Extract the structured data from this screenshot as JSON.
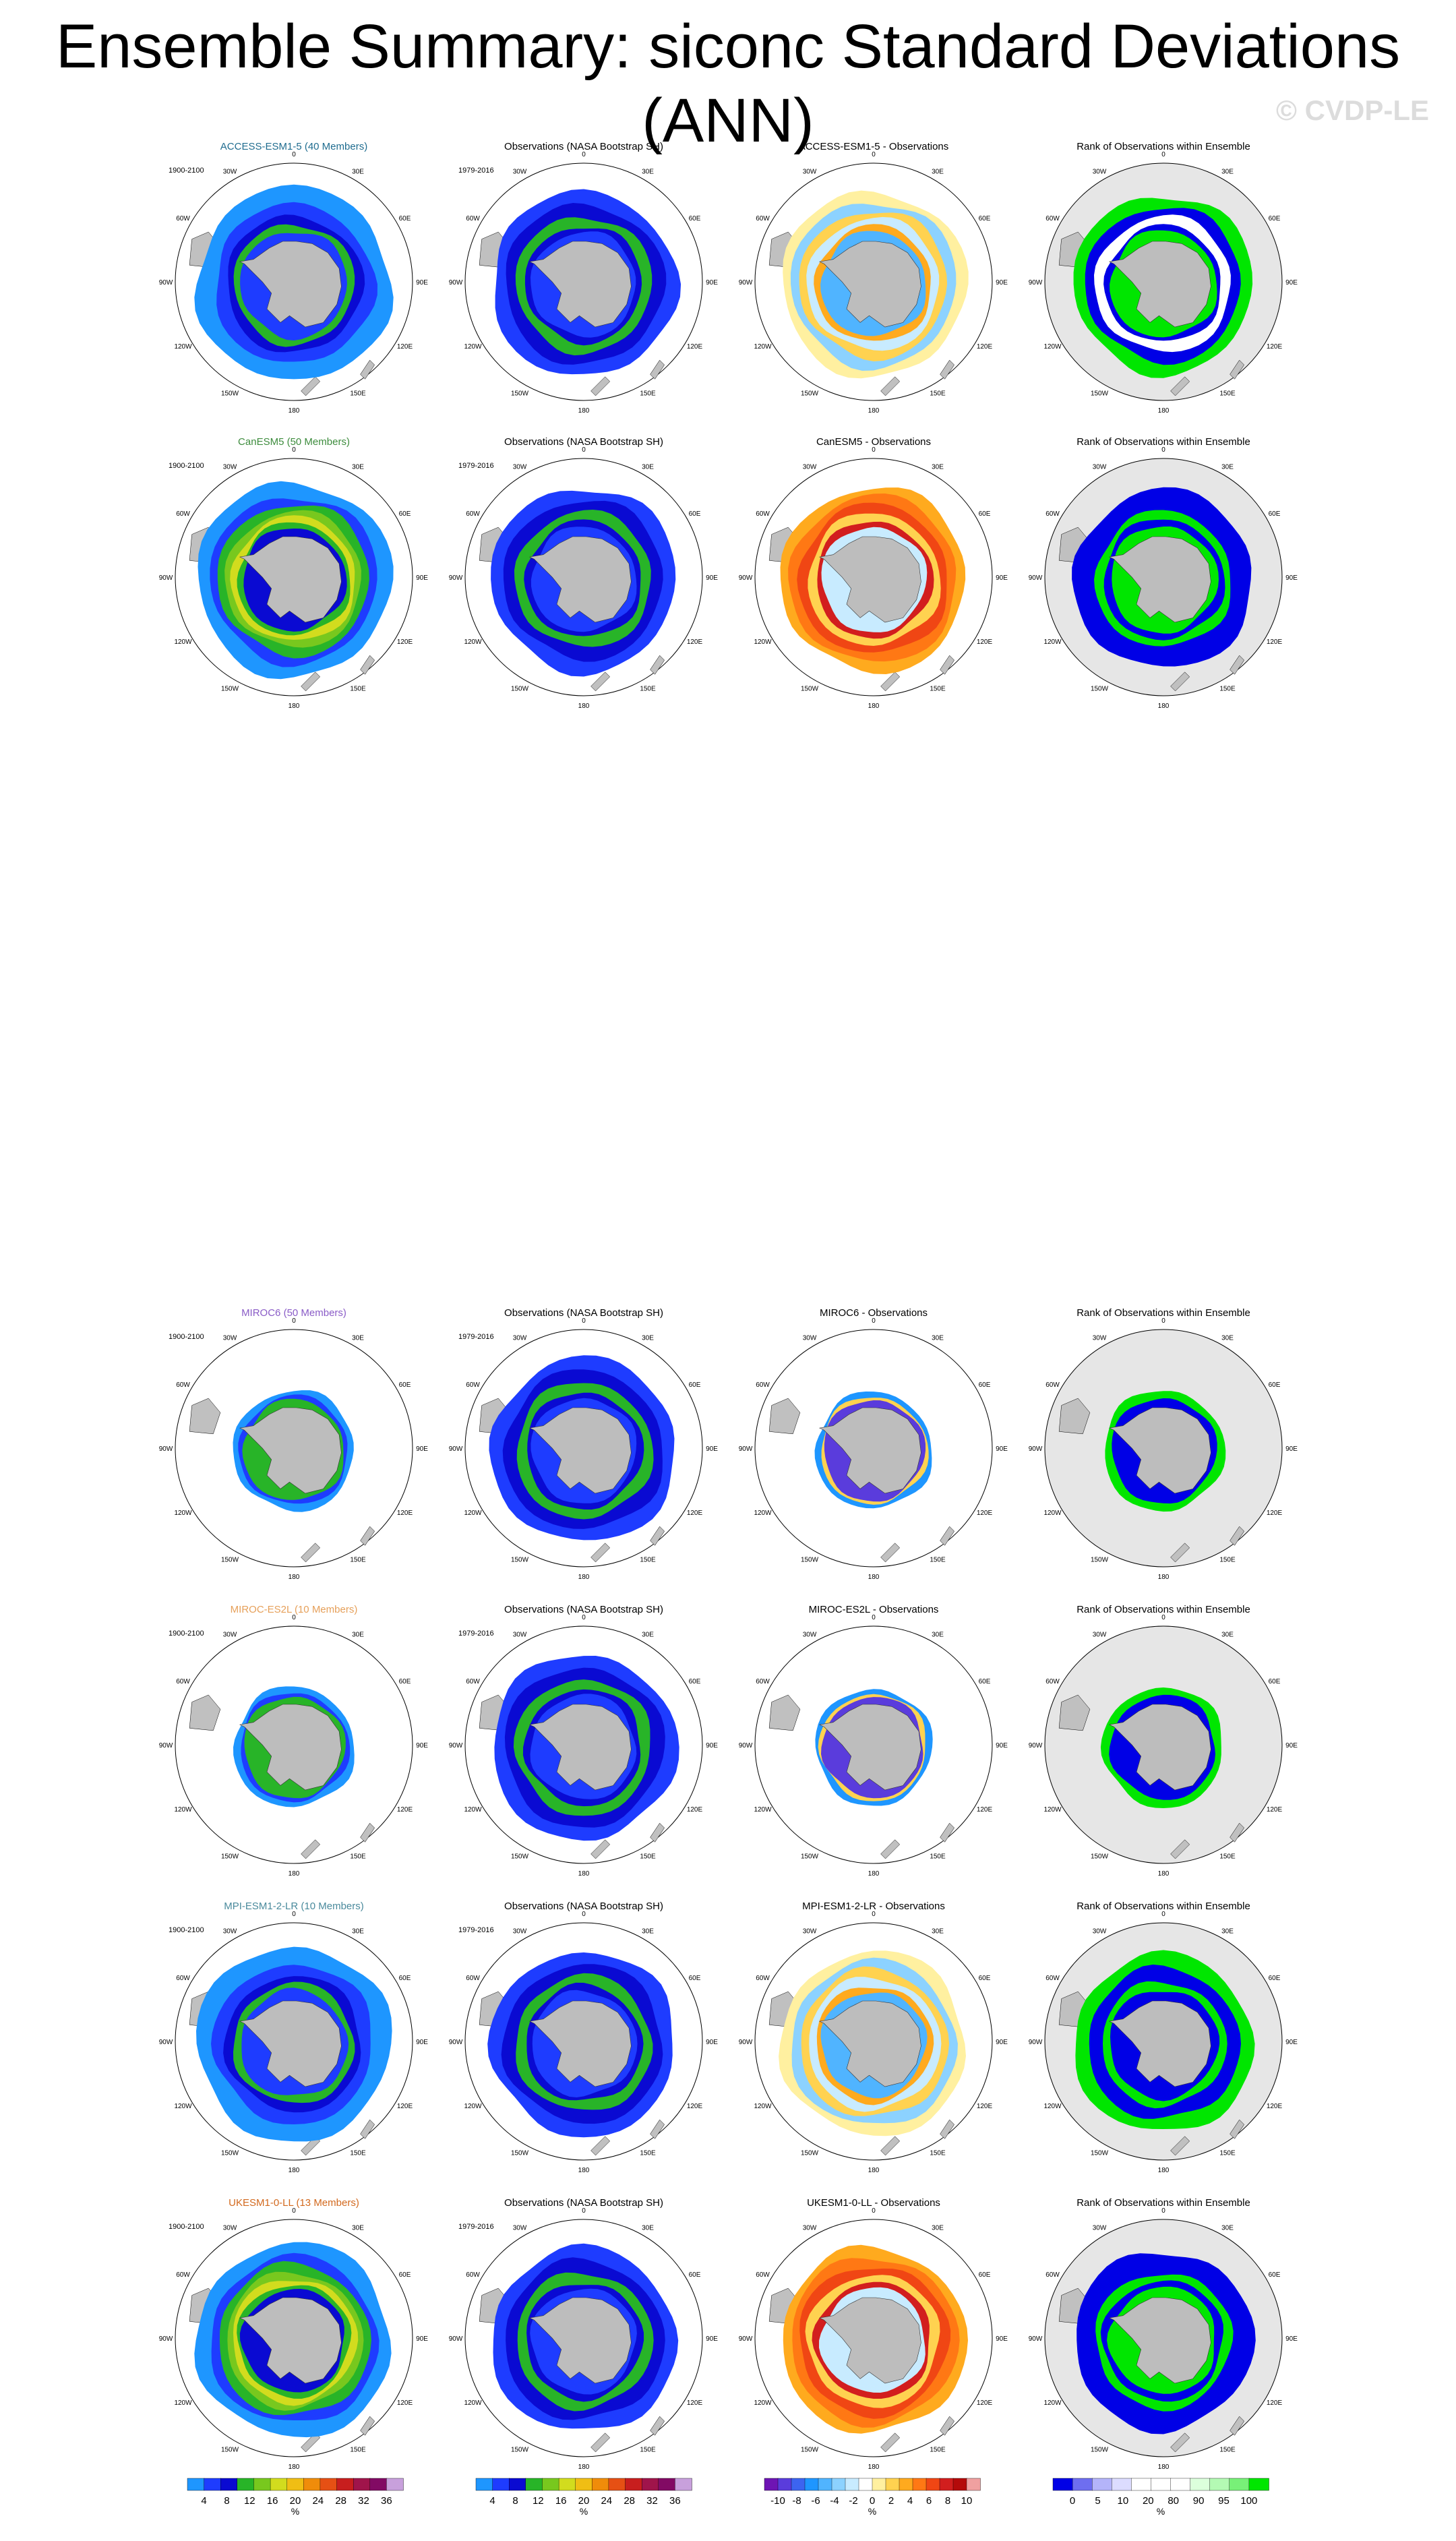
{
  "title": "Ensemble Summary: siconc Standard Deviations (ANN)",
  "watermark": "© CVDP-LE",
  "column_titles": {
    "observations": "Observations (NASA Bootstrap SH)",
    "rank": "Rank of Observations within Ensemble"
  },
  "rows": [
    {
      "model_title": "ACCESS-ESM1-5 (40 Members)",
      "diff_title": "ACCESS-ESM1-5 - Observations",
      "model_color": "#1f6c8f",
      "model_period": "1900-2100",
      "obs_period": "1979-2016",
      "model_style": "wide",
      "diff_style": "mixed",
      "rank_style": "mixed"
    },
    {
      "model_title": "CanESM5 (50 Members)",
      "diff_title": "CanESM5 - Observations",
      "model_color": "#3d8c3d",
      "model_period": "1900-2100",
      "obs_period": "1979-2016",
      "model_style": "wide_green",
      "diff_style": "warm",
      "rank_style": "blue"
    },
    {
      "model_title": "MIROC6 (50 Members)",
      "diff_title": "MIROC6 - Observations",
      "model_color": "#8a5cc7",
      "model_period": "1900-2100",
      "obs_period": "1979-2016",
      "model_style": "narrow",
      "diff_style": "narrow_cool",
      "rank_style": "narrow_green"
    },
    {
      "model_title": "MIROC-ES2L (10 Members)",
      "diff_title": "MIROC-ES2L - Observations",
      "model_color": "#e6a05a",
      "model_period": "1900-2100",
      "obs_period": "1979-2016",
      "model_style": "narrow",
      "diff_style": "narrow_cool",
      "rank_style": "narrow_green"
    },
    {
      "model_title": "MPI-ESM1-2-LR (10 Members)",
      "diff_title": "MPI-ESM1-2-LR - Observations",
      "model_color": "#4a8a9c",
      "model_period": "1900-2100",
      "obs_period": "1979-2016",
      "model_style": "wide",
      "diff_style": "mixed",
      "rank_style": "mixed_green"
    },
    {
      "model_title": "UKESM1-0-LL (13 Members)",
      "diff_title": "UKESM1-0-LL - Observations",
      "model_color": "#d2691e",
      "model_period": "1900-2100",
      "obs_period": "1979-2016",
      "model_style": "wide_green",
      "diff_style": "warm",
      "rank_style": "blue"
    }
  ],
  "map_labels": {
    "lon": [
      "0",
      "30E",
      "60E",
      "90E",
      "120E",
      "150E",
      "180",
      "150W",
      "120W",
      "90W",
      "60W",
      "30W"
    ]
  },
  "colorbars": {
    "stddev": {
      "colors": [
        "#1e96ff",
        "#1e3cff",
        "#0a0ad2",
        "#28b428",
        "#78c81e",
        "#d2dc1e",
        "#f0be14",
        "#f08c0a",
        "#e65014",
        "#c81e1e",
        "#a0144b",
        "#820a64",
        "#c8a0dc"
      ],
      "ticks": [
        "4",
        "8",
        "12",
        "16",
        "20",
        "24",
        "28",
        "32",
        "36"
      ],
      "unit": "%"
    },
    "diff": {
      "colors": [
        "#6e14b4",
        "#5a3cdc",
        "#3c64f0",
        "#1e96ff",
        "#50b4ff",
        "#8cd2ff",
        "#c8ebff",
        "#ffffff",
        "#fff0a0",
        "#ffd250",
        "#ffaa1e",
        "#ff7814",
        "#f04614",
        "#d21e1e",
        "#b40a0a",
        "#f0a0a0"
      ],
      "ticks": [
        "-10",
        "-8",
        "-6",
        "-4",
        "-2",
        "0",
        "2",
        "4",
        "6",
        "8",
        "10"
      ],
      "unit": "%"
    },
    "rank": {
      "colors": [
        "#0000e6",
        "#6e6ef0",
        "#b4b4fa",
        "#dcdcff",
        "#ffffff",
        "#ffffff",
        "#ffffff",
        "#dcffdc",
        "#b4fab4",
        "#78f078",
        "#00e600"
      ],
      "ticks": [
        "0",
        "5",
        "10",
        "20",
        "80",
        "90",
        "95",
        "100"
      ],
      "unit": "%"
    }
  }
}
